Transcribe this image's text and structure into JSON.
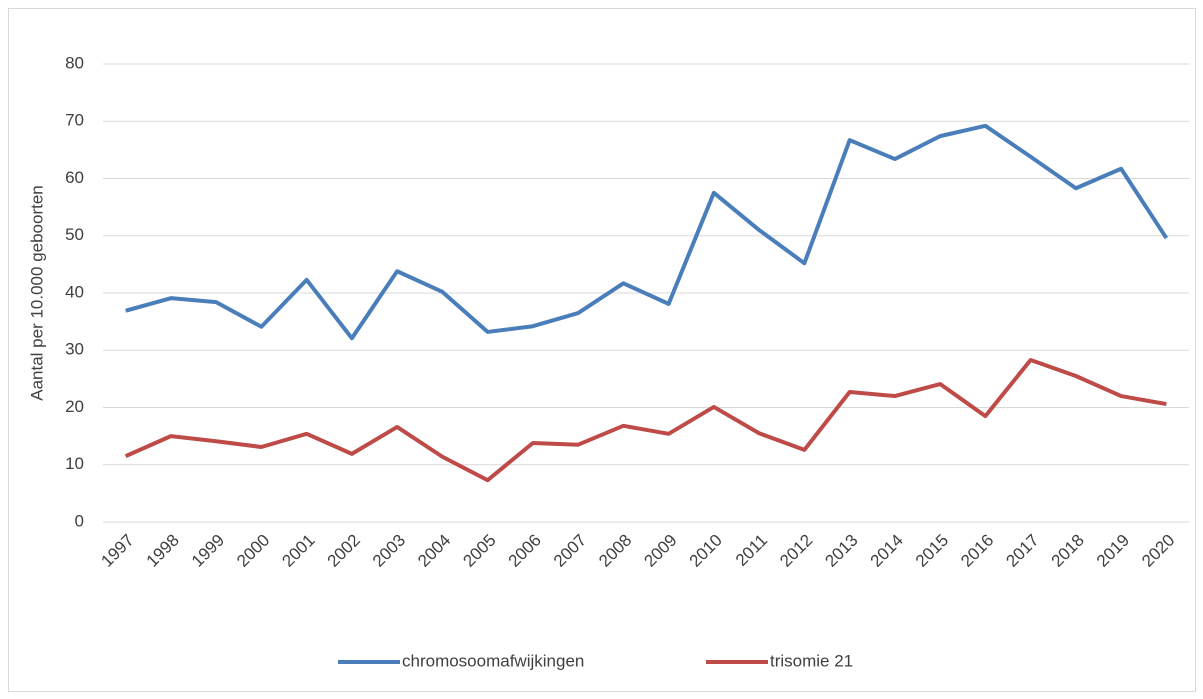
{
  "chart_data": {
    "type": "line",
    "y_label": "Aantal per 10.000 geboorten",
    "categories": [
      "1997",
      "1998",
      "1999",
      "2000",
      "2001",
      "2002",
      "2003",
      "2004",
      "2005",
      "2006",
      "2007",
      "2008",
      "2009",
      "2010",
      "2011",
      "2012",
      "2013",
      "2014",
      "2015",
      "2016",
      "2017",
      "2018",
      "2019",
      "2020"
    ],
    "series": [
      {
        "name": "chromosoomafwijkingen",
        "color": "#4a7ebb",
        "values": [
          36.9,
          39.1,
          38.4,
          34.1,
          42.3,
          32.1,
          43.8,
          40.2,
          33.2,
          34.2,
          36.5,
          41.7,
          38.1,
          57.5,
          51,
          45.2,
          66.7,
          63.4,
          67.4,
          69.2,
          63.8,
          58.3,
          61.7,
          49.6
        ]
      },
      {
        "name": "trisomie 21",
        "color": "#be4b48",
        "values": [
          11.5,
          15,
          14.1,
          13.1,
          15.4,
          11.9,
          16.6,
          11.4,
          7.3,
          13.8,
          13.5,
          16.8,
          15.4,
          20.1,
          15.5,
          12.6,
          22.7,
          22,
          24.1,
          18.5,
          28.3,
          25.5,
          22,
          20.6
        ]
      }
    ],
    "ylim": [
      0,
      80
    ],
    "yticks": [
      0,
      10,
      20,
      30,
      40,
      50,
      60,
      70,
      80
    ],
    "grid": true,
    "legend": "bottom"
  }
}
